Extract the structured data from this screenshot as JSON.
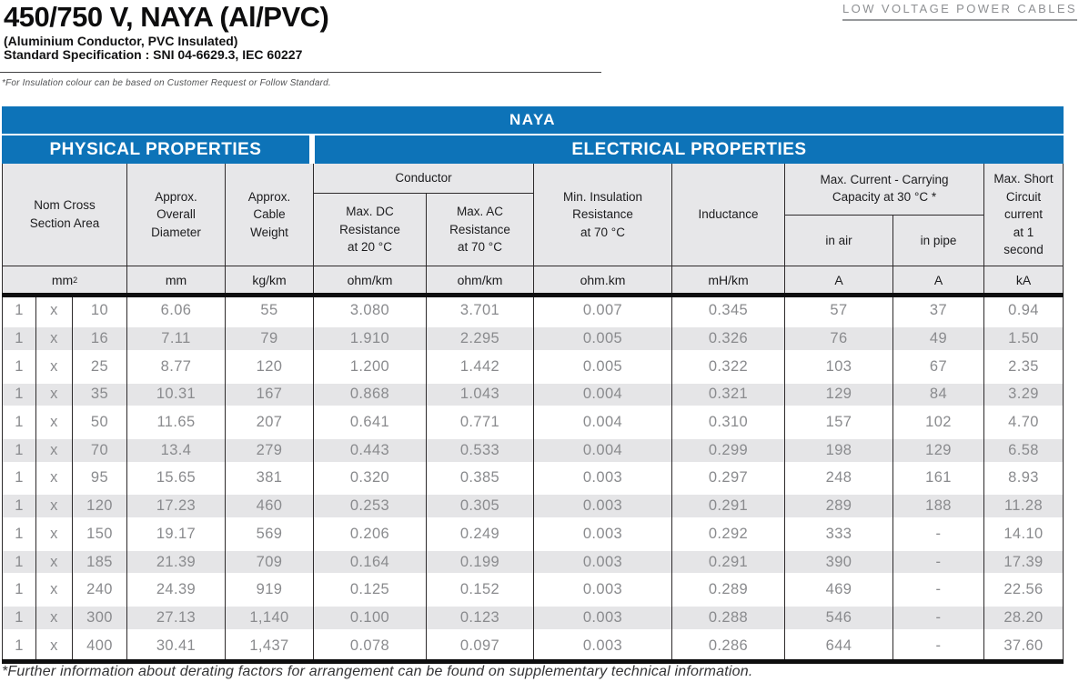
{
  "header": {
    "title": "450/750 V, NAYA (Al/PVC)",
    "subtitle": "(Aluminium Conductor, PVC Insulated)",
    "spec": "Standard Specification : SNI 04-6629.3, IEC 60227",
    "category": "LOW VOLTAGE POWER CABLES",
    "insulation_note": "*For Insulation colour can be based on Customer Request or Follow Standard."
  },
  "table": {
    "product": "NAYA",
    "sections": {
      "physical": "PHYSICAL PROPERTIES",
      "electrical": "ELECTRICAL PROPERTIES"
    },
    "columns": {
      "nom_cross": "Nom Cross\nSection Area",
      "diameter": "Approx.\nOverall\nDiameter",
      "weight": "Approx.\nCable\nWeight",
      "conductor_group": "Conductor",
      "dc_resistance": "Max. DC\nResistance\nat 20 °C",
      "ac_resistance": "Max. AC\nResistance\nat 70 °C",
      "insulation": "Min. Insulation\nResistance\nat 70 °C",
      "inductance": "Inductance",
      "current_group": "Max. Current - Carrying\nCapacity at 30 °C *",
      "in_air": "in air",
      "in_pipe": "in pipe",
      "short_circuit": "Max. Short\nCircuit\ncurrent\nat 1\nsecond"
    },
    "units": [
      "mm²",
      "mm",
      "kg/km",
      "ohm/km",
      "ohm/km",
      "ohm.km",
      "mH/km",
      "A",
      "A",
      "kA"
    ],
    "rows": [
      [
        "1",
        "x",
        "10",
        "6.06",
        "55",
        "3.080",
        "3.701",
        "0.007",
        "0.345",
        "57",
        "37",
        "0.94"
      ],
      [
        "1",
        "x",
        "16",
        "7.11",
        "79",
        "1.910",
        "2.295",
        "0.005",
        "0.326",
        "76",
        "49",
        "1.50"
      ],
      [
        "1",
        "x",
        "25",
        "8.77",
        "120",
        "1.200",
        "1.442",
        "0.005",
        "0.322",
        "103",
        "67",
        "2.35"
      ],
      [
        "1",
        "x",
        "35",
        "10.31",
        "167",
        "0.868",
        "1.043",
        "0.004",
        "0.321",
        "129",
        "84",
        "3.29"
      ],
      [
        "1",
        "x",
        "50",
        "11.65",
        "207",
        "0.641",
        "0.771",
        "0.004",
        "0.310",
        "157",
        "102",
        "4.70"
      ],
      [
        "1",
        "x",
        "70",
        "13.4",
        "279",
        "0.443",
        "0.533",
        "0.004",
        "0.299",
        "198",
        "129",
        "6.58"
      ],
      [
        "1",
        "x",
        "95",
        "15.65",
        "381",
        "0.320",
        "0.385",
        "0.003",
        "0.297",
        "248",
        "161",
        "8.93"
      ],
      [
        "1",
        "x",
        "120",
        "17.23",
        "460",
        "0.253",
        "0.305",
        "0.003",
        "0.291",
        "289",
        "188",
        "11.28"
      ],
      [
        "1",
        "x",
        "150",
        "19.17",
        "569",
        "0.206",
        "0.249",
        "0.003",
        "0.292",
        "333",
        "-",
        "14.10"
      ],
      [
        "1",
        "x",
        "185",
        "21.39",
        "709",
        "0.164",
        "0.199",
        "0.003",
        "0.291",
        "390",
        "-",
        "17.39"
      ],
      [
        "1",
        "x",
        "240",
        "24.39",
        "919",
        "0.125",
        "0.152",
        "0.003",
        "0.289",
        "469",
        "-",
        "22.56"
      ],
      [
        "1",
        "x",
        "300",
        "27.13",
        "1,140",
        "0.100",
        "0.123",
        "0.003",
        "0.288",
        "546",
        "-",
        "28.20"
      ],
      [
        "1",
        "x",
        "400",
        "30.41",
        "1,437",
        "0.078",
        "0.097",
        "0.003",
        "0.286",
        "644",
        "-",
        "37.60"
      ]
    ]
  },
  "footer": {
    "note": "*Further information about derating factors for arrangement can be found on supplementary technical information."
  },
  "colors": {
    "brand_blue": "#0d73b8",
    "header_bg": "#e7e7e9",
    "row_alt_bg": "#e5e5e7",
    "border_dark": "#2d2a2b",
    "data_text": "#8a8b8e",
    "muted_gray": "#8e9093"
  }
}
